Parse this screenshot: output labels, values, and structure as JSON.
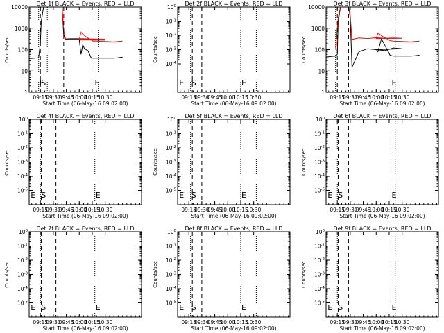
{
  "figure": {
    "xtick_labels": [
      "09:15",
      "09:30",
      "09:45",
      "10:00",
      "10:15",
      "10:30"
    ],
    "xlabel": "Start Time (06-May-16 09:02:00)",
    "ylabel": "Counts/sec",
    "colors": {
      "events": "#000000",
      "lld": "#ff0000",
      "axes": "#000000"
    }
  },
  "chart_data": [
    {
      "type": "line",
      "title": "Det 1f BLACK = Events, RED = LLD",
      "x_range_minutes": [
        9.02,
        10.72
      ],
      "ylim": [
        1,
        10000
      ],
      "y_scale": "log",
      "y_tick_labels": [
        "1",
        "10",
        "100",
        "1000",
        "10000"
      ],
      "markers": [
        {
          "label": "E",
          "time": 9.13,
          "style": "dotted"
        },
        {
          "label": "S",
          "time": 9.15,
          "style": "dashed"
        },
        {
          "label": "",
          "time": 9.23,
          "style": "dotted"
        },
        {
          "label": "",
          "time": 9.42,
          "style": "dashed"
        },
        {
          "label": "E",
          "time": 10.17,
          "style": "dotted"
        },
        {
          "label": "",
          "time": 10.22,
          "style": "dotted"
        }
      ],
      "series": [
        {
          "name": "Events",
          "color": "#000000",
          "x": [
            9.02,
            9.08,
            9.13,
            9.15,
            9.16,
            9.19,
            9.21,
            9.24,
            9.26,
            9.3,
            9.4,
            9.42,
            9.44,
            9.5,
            9.6,
            9.7,
            9.8,
            9.9,
            10.0,
            10.02,
            10.04,
            10.06,
            10.1,
            10.14,
            10.16,
            10.2,
            10.3,
            10.4,
            10.45,
            10.5
          ],
          "y": [
            38,
            40,
            42,
            200,
            2000,
            12000,
            12000,
            12000,
            12000,
            12000,
            12000,
            500,
            300,
            300,
            300,
            290,
            280,
            280,
            285,
            60,
            170,
            110,
            90,
            40,
            40,
            40,
            40,
            40,
            42,
            45
          ]
        },
        {
          "name": "LLD",
          "color": "#ff0000",
          "x": [
            9.21,
            9.26,
            9.3,
            9.4,
            9.42,
            9.44,
            9.5,
            9.6,
            9.7,
            9.8,
            9.9,
            10.0,
            10.02,
            10.06,
            10.1,
            10.14,
            10.16,
            10.2,
            10.3,
            10.4,
            10.45,
            10.5
          ],
          "y": [
            12000,
            12000,
            12000,
            12000,
            800,
            320,
            330,
            330,
            320,
            310,
            310,
            300,
            650,
            450,
            350,
            280,
            250,
            250,
            240,
            230,
            240,
            250
          ]
        }
      ]
    },
    {
      "type": "line",
      "title": "Det 2f BLACK = Events, RED = LLD",
      "x_range_minutes": [
        9.02,
        10.72
      ],
      "ylim": [
        1e-06,
        1
      ],
      "y_scale": "log",
      "y_tick_labels": [
        "10^0",
        "10^-1",
        "10^-2",
        "10^-3",
        "10^-4"
      ],
      "markers": [
        {
          "label": "E",
          "time": 9.03,
          "style": "none"
        },
        {
          "label": "S",
          "time": 9.17,
          "style": "dotted"
        },
        {
          "label": "",
          "time": 9.19,
          "style": "dashed"
        },
        {
          "label": "",
          "time": 9.3,
          "style": "dashed"
        },
        {
          "label": "E",
          "time": 10.15,
          "style": "dotted"
        },
        {
          "label": "",
          "time": 10.33,
          "style": "dotted"
        }
      ],
      "series": []
    },
    {
      "type": "line",
      "title": "Det 3f BLACK = Events, RED = LLD",
      "x_range_minutes": [
        9.02,
        10.72
      ],
      "ylim": [
        1,
        10000
      ],
      "y_scale": "log",
      "y_tick_labels": [
        "1",
        "10",
        "100",
        "1000",
        "10000"
      ],
      "markers": [
        {
          "label": "",
          "time": 9.13,
          "style": "dotted"
        },
        {
          "label": "",
          "time": 9.15,
          "style": "dashed"
        },
        {
          "label": "",
          "time": 9.28,
          "style": "dashed"
        },
        {
          "label": "E",
          "time": 10.17,
          "style": "dotted"
        },
        {
          "label": "",
          "time": 10.22,
          "style": "dotted"
        }
      ],
      "series": [
        {
          "name": "Events",
          "color": "#000000",
          "x": [
            9.02,
            9.08,
            9.13,
            9.15,
            9.16,
            9.19,
            9.21,
            9.24,
            9.28,
            9.3,
            9.32,
            9.4,
            9.5,
            9.6,
            9.7,
            9.8,
            9.9,
            10.0,
            10.02,
            10.06,
            10.1,
            10.14,
            10.16,
            10.2,
            10.3,
            10.4,
            10.45,
            10.5
          ],
          "y": [
            45,
            48,
            50,
            60,
            2000,
            12000,
            12000,
            12000,
            12000,
            3000,
            15,
            80,
            110,
            100,
            90,
            120,
            110,
            100,
            80,
            320,
            160,
            80,
            55,
            50,
            50,
            50,
            52,
            55
          ]
        },
        {
          "name": "LLD",
          "color": "#ff0000",
          "x": [
            9.13,
            9.16,
            9.19,
            9.21,
            9.24,
            9.28,
            9.3,
            9.32,
            9.4,
            9.5,
            9.6,
            9.7,
            9.8,
            9.9,
            10.0,
            10.02,
            10.06,
            10.1,
            10.14,
            10.16,
            10.2,
            10.3,
            10.4,
            10.45,
            10.5
          ],
          "y": [
            100,
            3000,
            12000,
            12000,
            12000,
            12000,
            4000,
            300,
            350,
            330,
            360,
            340,
            350,
            340,
            330,
            600,
            450,
            360,
            300,
            260,
            250,
            240,
            230,
            240,
            250
          ]
        }
      ]
    },
    {
      "type": "line",
      "title": "Det 4f BLACK = Events, RED = LLD",
      "x_range_minutes": [
        9.02,
        10.72
      ],
      "ylim": [
        1e-06,
        1
      ],
      "y_scale": "log",
      "y_tick_labels": [
        "10^0",
        "10^-1",
        "10^-2",
        "10^-3",
        "10^-4",
        "10^-5"
      ],
      "markers": [
        {
          "label": "E",
          "time": 9.03,
          "style": "none"
        },
        {
          "label": "S",
          "time": 9.15,
          "style": "dotted"
        },
        {
          "label": "",
          "time": 9.16,
          "style": "dashed"
        },
        {
          "label": "",
          "time": 9.33,
          "style": "dashed"
        },
        {
          "label": "E",
          "time": 10.18,
          "style": "dotted"
        }
      ],
      "series": []
    },
    {
      "type": "line",
      "title": "Det 5f BLACK = Events, RED = LLD",
      "x_range_minutes": [
        9.02,
        10.72
      ],
      "ylim": [
        1e-06,
        1
      ],
      "y_scale": "log",
      "y_tick_labels": [
        "10^0",
        "10^-1",
        "10^-2",
        "10^-3",
        "10^-4",
        "10^-5"
      ],
      "markers": [
        {
          "label": "E",
          "time": 9.03,
          "style": "none"
        },
        {
          "label": "S",
          "time": 9.17,
          "style": "dotted"
        },
        {
          "label": "",
          "time": 9.19,
          "style": "dashed"
        },
        {
          "label": "",
          "time": 9.3,
          "style": "dashed"
        },
        {
          "label": "E",
          "time": 10.15,
          "style": "dotted"
        },
        {
          "label": "",
          "time": 10.33,
          "style": "dotted"
        }
      ],
      "series": []
    },
    {
      "type": "line",
      "title": "Det 6f BLACK = Events, RED = LLD",
      "x_range_minutes": [
        9.02,
        10.72
      ],
      "ylim": [
        1e-06,
        1
      ],
      "y_scale": "log",
      "y_tick_labels": [
        "10^0",
        "10^-1",
        "10^-2",
        "10^-3",
        "10^-4",
        "10^-5"
      ],
      "markers": [
        {
          "label": "E",
          "time": 9.03,
          "style": "none"
        },
        {
          "label": "S",
          "time": 9.15,
          "style": "dotted"
        },
        {
          "label": "",
          "time": 9.16,
          "style": "dashed"
        },
        {
          "label": "",
          "time": 9.28,
          "style": "dashed"
        },
        {
          "label": "E",
          "time": 10.17,
          "style": "dotted"
        },
        {
          "label": "",
          "time": 10.22,
          "style": "dotted"
        }
      ],
      "series": []
    },
    {
      "type": "line",
      "title": "Det 7f BLACK = Events, RED = LLD",
      "x_range_minutes": [
        9.02,
        10.72
      ],
      "ylim": [
        1e-06,
        1
      ],
      "y_scale": "log",
      "y_tick_labels": [
        "10^0",
        "10^-1",
        "10^-2",
        "10^-3",
        "10^-4",
        "10^-5"
      ],
      "markers": [
        {
          "label": "E",
          "time": 9.03,
          "style": "none"
        },
        {
          "label": "S",
          "time": 9.15,
          "style": "dotted"
        },
        {
          "label": "",
          "time": 9.16,
          "style": "dashed"
        },
        {
          "label": "",
          "time": 9.33,
          "style": "dashed"
        },
        {
          "label": "E",
          "time": 10.18,
          "style": "dotted"
        }
      ],
      "series": []
    },
    {
      "type": "line",
      "title": "Det 8f BLACK = Events, RED = LLD",
      "x_range_minutes": [
        9.02,
        10.72
      ],
      "ylim": [
        1e-06,
        1
      ],
      "y_scale": "log",
      "y_tick_labels": [
        "10^0",
        "10^-1",
        "10^-2",
        "10^-3",
        "10^-4",
        "10^-5"
      ],
      "markers": [
        {
          "label": "E",
          "time": 9.03,
          "style": "none"
        },
        {
          "label": "S",
          "time": 9.17,
          "style": "dotted"
        },
        {
          "label": "",
          "time": 9.19,
          "style": "dashed"
        },
        {
          "label": "",
          "time": 9.3,
          "style": "dashed"
        },
        {
          "label": "E",
          "time": 10.15,
          "style": "dotted"
        },
        {
          "label": "",
          "time": 10.33,
          "style": "dotted"
        }
      ],
      "series": []
    },
    {
      "type": "line",
      "title": "Det 9f BLACK = Events, RED = LLD",
      "x_range_minutes": [
        9.02,
        10.72
      ],
      "ylim": [
        1e-06,
        1
      ],
      "y_scale": "log",
      "y_tick_labels": [
        "10^0",
        "10^-1",
        "10^-2",
        "10^-3",
        "10^-4",
        "10^-5"
      ],
      "markers": [
        {
          "label": "E",
          "time": 9.03,
          "style": "none"
        },
        {
          "label": "S",
          "time": 9.15,
          "style": "dotted"
        },
        {
          "label": "",
          "time": 9.16,
          "style": "dashed"
        },
        {
          "label": "",
          "time": 9.28,
          "style": "dashed"
        },
        {
          "label": "E",
          "time": 10.17,
          "style": "dotted"
        },
        {
          "label": "",
          "time": 10.22,
          "style": "dotted"
        }
      ],
      "series": []
    }
  ]
}
